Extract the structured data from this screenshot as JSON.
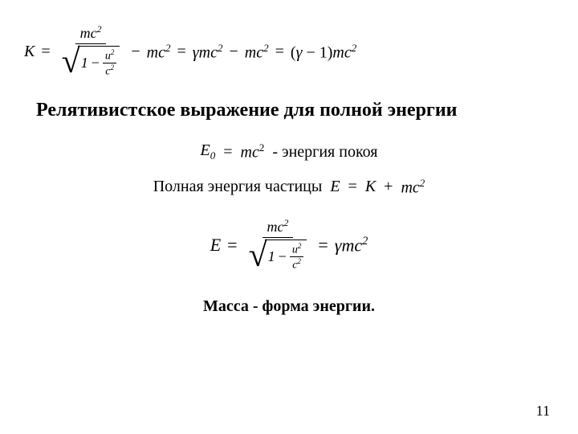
{
  "heading": "Релятивистское выражение для полной энергии",
  "eq1": {
    "K": "K",
    "eq": "=",
    "mc2": "mc",
    "sup2": "2",
    "one": "1",
    "minus": "−",
    "u2": "u",
    "c2": "c",
    "gamma": "γ",
    "lparen": "(",
    "rparen": ")",
    "minus1": "− 1"
  },
  "rest_energy": {
    "E0": "E",
    "sub0": "0",
    "eq": "=",
    "mc": "mc",
    "sup2": "2",
    "label": "- энергия покоя"
  },
  "total_energy": {
    "label": "Полная энергия частицы",
    "E": "E",
    "eq": "=",
    "K": "K",
    "plus": "+",
    "mc": "mc",
    "sup2": "2"
  },
  "eq3": {
    "E": "E",
    "eq": "=",
    "mc": "mc",
    "sup2": "2",
    "one": "1",
    "minus": "−",
    "u": "u",
    "c": "c",
    "gamma": "γ"
  },
  "mass_label": "Масса - форма энергии.",
  "page_number": "11",
  "colors": {
    "bg": "#ffffff",
    "text": "#000000"
  }
}
